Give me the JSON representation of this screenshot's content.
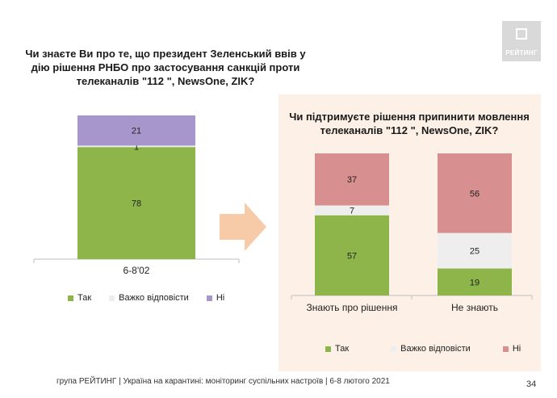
{
  "logo": {
    "text": "РЕЙТИНГ"
  },
  "chart1": {
    "question": "Чи знаєте Ви про те, що президент Зеленський ввів у дію рішення РНБО про застосування санкцій проти телеканалів \"112 \", NewsOne, ZIK?"
  },
  "chart2": {
    "question": "Чи підтримуєте рішення припинити мовлення телеканалів \"112 \", NewsOne, ZIK?"
  },
  "legend1": {
    "yes": "Так",
    "hard": "Важко відповісти",
    "no": "Ні"
  },
  "legend2": {
    "yes": "Так",
    "hard": "Важко відповісти",
    "no": "Ні"
  },
  "footer": "група РЕЙТИНГ | Україна на карантині: моніторинг суспільних настроїв | 6-8 лютого 2021",
  "page_number": "34",
  "colors": {
    "yes": "#8db54a",
    "hard": "#eeeeee",
    "no1": "#a796cb",
    "no2": "#d88f8f",
    "panel": "#fdf0e6",
    "arrow": "#f8cba8"
  },
  "chart_data": [
    {
      "type": "bar",
      "stacked": true,
      "categories": [
        "6-8'02"
      ],
      "series": [
        {
          "name": "Так",
          "values": [
            78
          ]
        },
        {
          "name": "Важко відповісти",
          "values": [
            1
          ]
        },
        {
          "name": "Ні",
          "values": [
            21
          ]
        }
      ],
      "ylim": [
        0,
        100
      ],
      "legend": "bottom"
    },
    {
      "type": "bar",
      "stacked": true,
      "categories": [
        "Знають про рішення",
        "Не знають"
      ],
      "series": [
        {
          "name": "Так",
          "values": [
            57,
            19
          ]
        },
        {
          "name": "Важко відповісти",
          "values": [
            7,
            25
          ]
        },
        {
          "name": "Ні",
          "values": [
            37,
            56
          ]
        }
      ],
      "ylim": [
        0,
        100
      ],
      "legend": "bottom"
    }
  ]
}
